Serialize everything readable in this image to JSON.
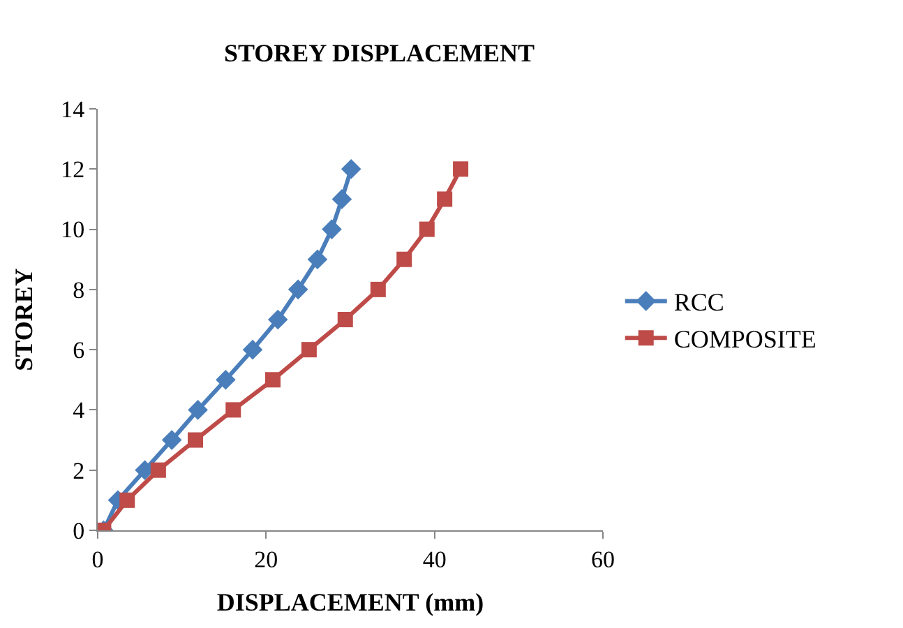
{
  "chart_data": {
    "type": "line",
    "title": "STOREY DISPLACEMENT",
    "xlabel": "DISPLACEMENT (mm)",
    "ylabel": "STOREY",
    "xlim": [
      0,
      60
    ],
    "xticks": [
      0,
      20,
      40,
      60
    ],
    "ylim": [
      0,
      14
    ],
    "yticks": [
      0,
      2,
      4,
      6,
      8,
      10,
      12,
      14
    ],
    "legend": "right",
    "series": [
      {
        "name": "RCC",
        "color": "#4a7ebb",
        "marker": "diamond",
        "x": [
          0.7,
          2.4,
          5.6,
          8.8,
          11.9,
          15.2,
          18.4,
          21.4,
          23.8,
          26.1,
          27.8,
          29.0,
          30.1
        ],
        "values": [
          0,
          1,
          2,
          3,
          4,
          5,
          6,
          7,
          8,
          9,
          10,
          11,
          12
        ]
      },
      {
        "name": "COMPOSITE",
        "color": "#be4b48",
        "marker": "square",
        "x": [
          0.7,
          3.5,
          7.2,
          11.6,
          16.1,
          20.8,
          25.1,
          29.4,
          33.3,
          36.4,
          39.1,
          41.2,
          43.1
        ],
        "values": [
          0,
          1,
          2,
          3,
          4,
          5,
          6,
          7,
          8,
          9,
          10,
          11,
          12
        ]
      }
    ]
  }
}
